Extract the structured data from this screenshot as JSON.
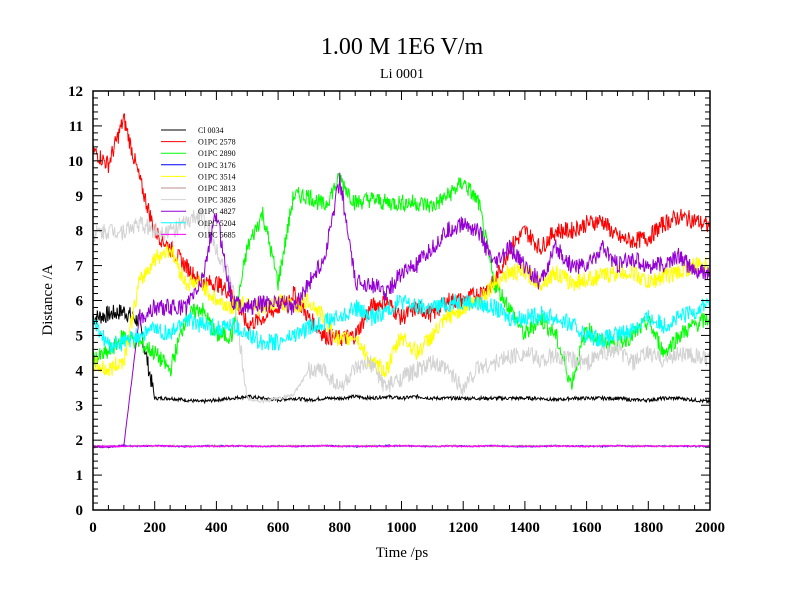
{
  "chart_data": {
    "type": "line",
    "title": "1.00 M 1E6 V/m",
    "subtitle": "Li 0001",
    "xlabel": "Time /ps",
    "ylabel": "Distance /A",
    "xlim": [
      0,
      2000
    ],
    "ylim": [
      0,
      12
    ],
    "xticks": [
      0,
      200,
      400,
      600,
      800,
      1000,
      1200,
      1400,
      1600,
      1800,
      2000
    ],
    "yticks": [
      0,
      1,
      2,
      3,
      4,
      5,
      6,
      7,
      8,
      9,
      10,
      11,
      12
    ],
    "grid": false,
    "legend_position": "top-left",
    "x_step": 50,
    "series": [
      {
        "name": "Cl 0034",
        "color": "#000000",
        "values": [
          5.5,
          5.6,
          5.7,
          5.4,
          3.2,
          3.2,
          3.15,
          3.1,
          3.15,
          3.2,
          3.25,
          3.2,
          3.15,
          3.2,
          3.15,
          3.2,
          3.2,
          3.25,
          3.2,
          3.25,
          3.2,
          3.25,
          3.2,
          3.2,
          3.2,
          3.2,
          3.2,
          3.2,
          3.2,
          3.2,
          3.15,
          3.2,
          3.2,
          3.2,
          3.2,
          3.15,
          3.15,
          3.2,
          3.2,
          3.15,
          3.1
        ]
      },
      {
        "name": "O1PC 2578",
        "color": "#ff0000",
        "values": [
          10.3,
          9.9,
          11.2,
          9.5,
          8.0,
          7.5,
          7.0,
          6.5,
          6.5,
          6.2,
          5.3,
          5.5,
          5.8,
          6.2,
          5.5,
          5.0,
          4.9,
          5.0,
          5.8,
          6.0,
          5.5,
          5.8,
          5.6,
          6.0,
          6.0,
          6.2,
          6.5,
          7.5,
          8.0,
          7.5,
          8.0,
          8.0,
          8.2,
          8.3,
          7.8,
          7.7,
          7.8,
          8.2,
          8.4,
          8.3,
          8.1
        ]
      },
      {
        "name": "O1PC 2890",
        "color": "#00ff00",
        "values": [
          4.3,
          4.5,
          5.0,
          4.8,
          4.5,
          4.0,
          5.5,
          5.8,
          5.0,
          5.0,
          7.5,
          8.5,
          6.5,
          9.0,
          9.0,
          8.7,
          9.5,
          8.8,
          8.9,
          8.8,
          8.8,
          8.8,
          8.7,
          9.0,
          9.4,
          8.8,
          6.5,
          5.8,
          5.0,
          5.5,
          5.0,
          3.6,
          5.2,
          4.8,
          4.8,
          5.0,
          5.4,
          4.5,
          5.0,
          5.3,
          5.5
        ]
      },
      {
        "name": "O1PC 3176",
        "color": "#0000ff",
        "values": [
          1.83,
          1.82,
          1.84,
          1.83,
          1.84,
          1.83,
          1.82,
          1.83,
          1.84,
          1.83,
          1.83,
          1.82,
          1.84,
          1.83,
          1.83,
          1.84,
          1.83,
          1.82,
          1.83,
          1.84,
          1.83,
          1.83,
          1.82,
          1.84,
          1.83,
          1.83,
          1.84,
          1.83,
          1.82,
          1.83,
          1.84,
          1.83,
          1.83,
          1.82,
          1.84,
          1.83,
          1.83,
          1.84,
          1.83,
          1.82,
          1.83
        ]
      },
      {
        "name": "O1PC 3514",
        "color": "#ffff00",
        "values": [
          4.2,
          4.0,
          4.3,
          6.5,
          7.2,
          7.5,
          6.5,
          6.5,
          6.0,
          5.8,
          6.0,
          5.7,
          6.0,
          5.8,
          6.0,
          5.5,
          4.8,
          5.0,
          4.2,
          4.0,
          5.0,
          4.5,
          5.0,
          5.5,
          5.8,
          6.0,
          6.5,
          6.8,
          6.8,
          6.5,
          6.8,
          6.5,
          6.6,
          6.7,
          6.8,
          6.8,
          6.5,
          6.7,
          6.8,
          7.0,
          7.0
        ]
      },
      {
        "name": "O1PC 3813",
        "color": "#bc8f8f",
        "values": [
          1.84,
          1.83,
          1.83,
          1.84,
          1.83,
          1.84,
          1.83,
          1.83,
          1.84,
          1.83,
          1.84,
          1.83,
          1.83,
          1.84,
          1.83,
          1.84,
          1.83,
          1.83,
          1.84,
          1.83,
          1.84,
          1.83,
          1.83,
          1.84,
          1.83,
          1.84,
          1.83,
          1.83,
          1.84,
          1.83,
          1.84,
          1.83,
          1.83,
          1.84,
          1.83,
          1.84,
          1.83,
          1.83,
          1.84,
          1.83,
          1.84
        ]
      },
      {
        "name": "O1PC 3826",
        "color": "#d3d3d3",
        "values": [
          7.9,
          8.0,
          8.0,
          8.2,
          8.0,
          8.0,
          8.2,
          8.5,
          7.5,
          6.5,
          3.2,
          3.1,
          3.2,
          3.3,
          4.0,
          4.0,
          3.5,
          4.0,
          4.2,
          3.5,
          3.8,
          4.0,
          4.2,
          4.0,
          3.5,
          4.1,
          4.2,
          4.4,
          4.5,
          4.3,
          4.4,
          4.3,
          4.2,
          4.5,
          4.6,
          4.2,
          4.5,
          4.3,
          4.5,
          4.4,
          4.3
        ]
      },
      {
        "name": "O1PC 4827",
        "color": "#9400d3",
        "values": [
          1.8,
          1.8,
          1.85,
          5.5,
          5.8,
          5.8,
          5.8,
          6.5,
          8.5,
          6.0,
          5.8,
          5.9,
          6.0,
          5.8,
          6.5,
          7.2,
          9.5,
          6.5,
          6.5,
          6.2,
          6.8,
          7.0,
          7.5,
          8.0,
          8.2,
          8.0,
          7.0,
          7.5,
          7.0,
          6.5,
          7.5,
          7.0,
          7.0,
          7.5,
          7.0,
          7.2,
          7.0,
          7.0,
          7.3,
          6.8,
          6.8
        ]
      },
      {
        "name": "O1PC 5204",
        "color": "#00ffff",
        "values": [
          5.4,
          4.7,
          4.8,
          5.0,
          5.2,
          5.0,
          5.5,
          5.3,
          5.2,
          5.3,
          5.0,
          4.8,
          4.8,
          5.0,
          5.2,
          5.4,
          5.5,
          5.8,
          5.5,
          5.7,
          6.0,
          5.8,
          5.8,
          5.9,
          6.0,
          5.9,
          5.8,
          5.5,
          5.5,
          5.6,
          5.5,
          5.3,
          5.0,
          4.9,
          5.0,
          5.2,
          5.5,
          5.3,
          5.5,
          5.7,
          6.0
        ]
      },
      {
        "name": "O1PC 5685",
        "color": "#ff00ff",
        "values": [
          1.82,
          1.83,
          1.82,
          1.83,
          1.84,
          1.83,
          1.82,
          1.83,
          1.82,
          1.84,
          1.83,
          1.82,
          1.83,
          1.82,
          1.83,
          1.84,
          1.82,
          1.83,
          1.82,
          1.83,
          1.84,
          1.83,
          1.82,
          1.83,
          1.82,
          1.83,
          1.84,
          1.82,
          1.83,
          1.82,
          1.83,
          1.83,
          1.82,
          1.83,
          1.84,
          1.82,
          1.83,
          1.82,
          1.83,
          1.84,
          1.83
        ]
      }
    ]
  }
}
